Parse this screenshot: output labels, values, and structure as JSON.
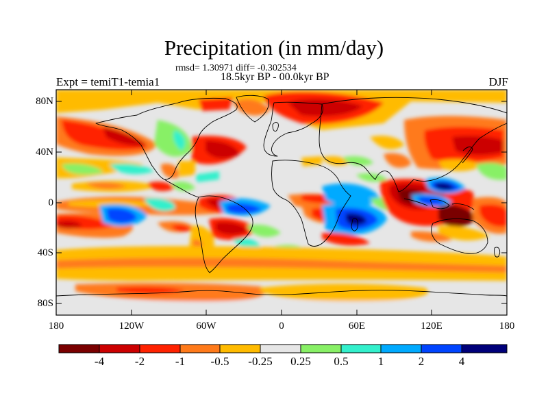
{
  "title": "Precipitation (in mm/day)",
  "stats": "rmsd= 1.30971 diff= -0.302534",
  "period": "18.5kyr BP - 00.0kyr BP",
  "experiment": "Expt = temiT1-temia1",
  "season": "DJF",
  "lat_ticks": [
    "80N",
    "40N",
    "0",
    "40S",
    "80S"
  ],
  "lon_ticks": [
    "180",
    "120W",
    "60W",
    "0",
    "60E",
    "120E",
    "180"
  ],
  "colorbar": {
    "labels": [
      "-4",
      "-2",
      "-1",
      "-0.5",
      "-0.25",
      "0.25",
      "0.5",
      "1",
      "2",
      "4"
    ],
    "colors": [
      "#7a0000",
      "#cc0000",
      "#ff2200",
      "#ff7a1a",
      "#ffbb00",
      "#e6e6e6",
      "#88f066",
      "#33f0cc",
      "#00aaff",
      "#0044ff",
      "#00007a"
    ]
  }
}
